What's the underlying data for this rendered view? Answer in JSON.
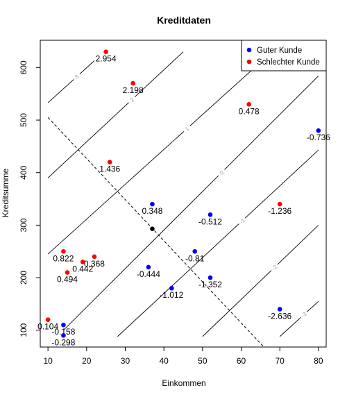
{
  "chart_data": {
    "type": "scatter",
    "title": "Kreditdaten",
    "xlabel": "Einkommen",
    "ylabel": "Kreditsumme",
    "xlim": [
      8,
      82
    ],
    "ylim": [
      68,
      652
    ],
    "xticks": [
      10,
      20,
      30,
      40,
      50,
      60,
      70,
      80
    ],
    "yticks": [
      100,
      200,
      300,
      400,
      500,
      600
    ],
    "legend_position": "top-right",
    "series": [
      {
        "name": "Guter Kunde",
        "color": "#0000ff",
        "points": [
          {
            "x": 37,
            "y": 340,
            "label": "0.348"
          },
          {
            "x": 52,
            "y": 320,
            "label": "-0.512"
          },
          {
            "x": 48,
            "y": 250,
            "label": "-0.81"
          },
          {
            "x": 36,
            "y": 220,
            "label": "-0.444"
          },
          {
            "x": 52,
            "y": 200,
            "label": "-1.352"
          },
          {
            "x": 42,
            "y": 180,
            "label": "-1.012"
          },
          {
            "x": 14,
            "y": 110,
            "label": "-0.158"
          },
          {
            "x": 14,
            "y": 90,
            "label": "-0.298"
          },
          {
            "x": 70,
            "y": 140,
            "label": "-2.636"
          },
          {
            "x": 80,
            "y": 480,
            "label": "-0.736"
          }
        ]
      },
      {
        "name": "Schlechter Kunde",
        "color": "#ff0000",
        "points": [
          {
            "x": 25,
            "y": 630,
            "label": "2.954"
          },
          {
            "x": 32,
            "y": 570,
            "label": "2.198"
          },
          {
            "x": 62,
            "y": 530,
            "label": "0.478"
          },
          {
            "x": 26,
            "y": 420,
            "label": "1.436"
          },
          {
            "x": 70,
            "y": 340,
            "label": "-1.236"
          },
          {
            "x": 14,
            "y": 250,
            "label": "0.822"
          },
          {
            "x": 22,
            "y": 240,
            "label": "0.368"
          },
          {
            "x": 19,
            "y": 230,
            "label": "0.442"
          },
          {
            "x": 15,
            "y": 210,
            "label": "0.494"
          },
          {
            "x": 10,
            "y": 120,
            "label": "0.104"
          }
        ]
      }
    ],
    "center_point": {
      "x": 37,
      "y": 293,
      "color": "#000000"
    },
    "dashed_line": {
      "points": [
        [
          10,
          505
        ],
        [
          66,
          67
        ]
      ]
    },
    "contour_lines": [
      {
        "label": "3",
        "points": [
          [
            10,
            533
          ],
          [
            22,
            613
          ]
        ]
      },
      {
        "label": "2",
        "points": [
          [
            10,
            390
          ],
          [
            45,
            630
          ]
        ]
      },
      {
        "label": "1",
        "points": [
          [
            10,
            245
          ],
          [
            68,
            630
          ]
        ]
      },
      {
        "label": "0",
        "points": [
          [
            14,
            100
          ],
          [
            80,
            584
          ]
        ]
      },
      {
        "label": "-1",
        "points": [
          [
            28,
            88
          ],
          [
            80,
            443
          ]
        ]
      },
      {
        "label": "-2",
        "points": [
          [
            50,
            88
          ],
          [
            80,
            300
          ]
        ]
      },
      {
        "label": "-3",
        "points": [
          [
            70,
            88
          ],
          [
            80,
            155
          ]
        ]
      }
    ]
  }
}
